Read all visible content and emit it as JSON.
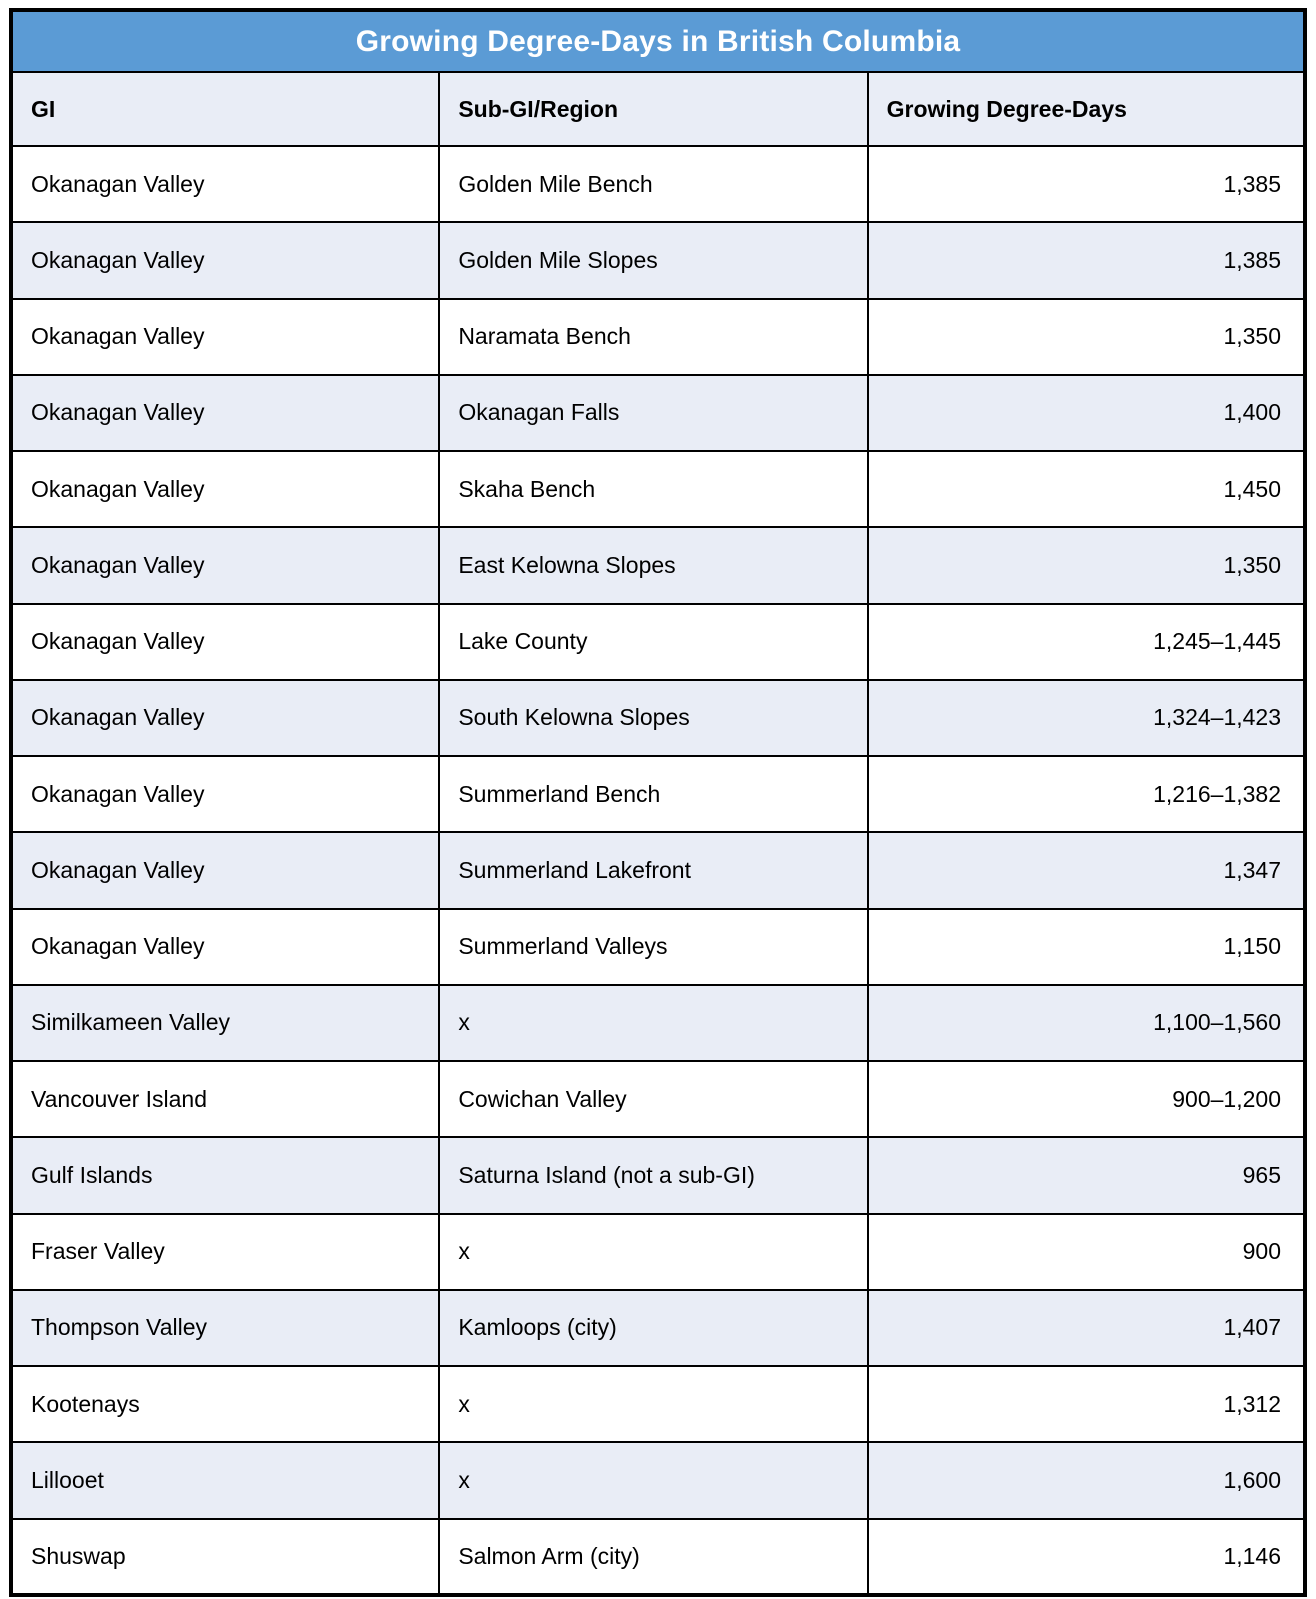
{
  "chart_data": {
    "type": "table",
    "title": "Growing Degree-Days in British Columbia",
    "columns": [
      "GI",
      "Sub-GI/Region",
      "Growing Degree-Days"
    ],
    "rows": [
      [
        "Okanagan Valley",
        "Golden Mile Bench",
        "1,385"
      ],
      [
        "Okanagan Valley",
        "Golden Mile Slopes",
        "1,385"
      ],
      [
        "Okanagan Valley",
        "Naramata Bench",
        "1,350"
      ],
      [
        "Okanagan Valley",
        "Okanagan Falls",
        "1,400"
      ],
      [
        "Okanagan Valley",
        "Skaha Bench",
        "1,450"
      ],
      [
        "Okanagan Valley",
        "East Kelowna Slopes",
        "1,350"
      ],
      [
        "Okanagan Valley",
        "Lake County",
        "1,245–1,445"
      ],
      [
        "Okanagan Valley",
        "South Kelowna Slopes",
        "1,324–1,423"
      ],
      [
        "Okanagan Valley",
        "Summerland Bench",
        "1,216–1,382"
      ],
      [
        "Okanagan Valley",
        "Summerland Lakefront",
        "1,347"
      ],
      [
        "Okanagan Valley",
        "Summerland Valleys",
        "1,150"
      ],
      [
        "Similkameen Valley",
        "x",
        "1,100–1,560"
      ],
      [
        "Vancouver Island",
        "Cowichan Valley",
        "900–1,200"
      ],
      [
        "Gulf Islands",
        "Saturna Island (not a sub-GI)",
        "965"
      ],
      [
        "Fraser Valley",
        "x",
        "900"
      ],
      [
        "Thompson Valley",
        "Kamloops (city)",
        "1,407"
      ],
      [
        "Kootenays",
        "x",
        "1,312"
      ],
      [
        "Lillooet",
        "x",
        "1,600"
      ],
      [
        "Shuswap",
        "Salmon Arm (city)",
        "1,146"
      ]
    ],
    "layout": {
      "striped": true,
      "stripe_pattern": "odd rows white, even rows light blue",
      "value_alignment": "right"
    }
  },
  "colors": {
    "title_bg": "#5B9BD5",
    "title_text": "#FFFFFF",
    "row_alt_bg": "#E9EDF6",
    "row_bg": "#FFFFFF",
    "border": "#000000",
    "text": "#000000"
  }
}
